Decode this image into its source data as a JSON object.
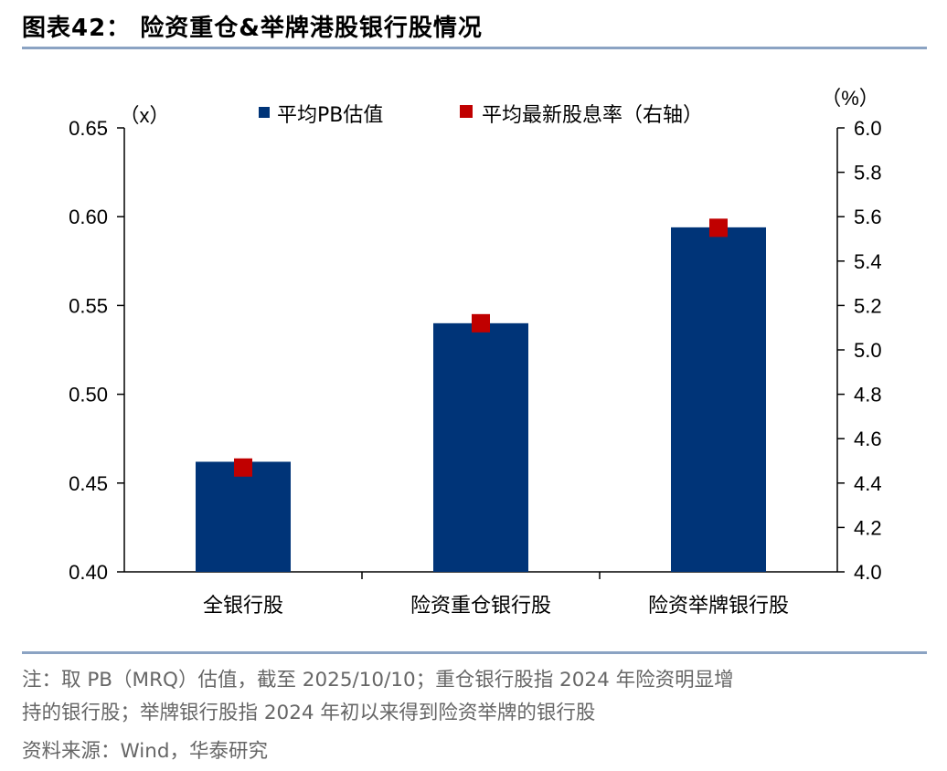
{
  "header": {
    "title": "图表42：  险资重仓&举牌港股银行股情况"
  },
  "chart_data": {
    "type": "bar",
    "categories": [
      "全银行股",
      "险资重仓银行股",
      "险资举牌银行股"
    ],
    "series": [
      {
        "name": "平均PB估值",
        "kind": "bar",
        "axis": "left",
        "color": "#003478",
        "values": [
          0.462,
          0.54,
          0.594
        ]
      },
      {
        "name": "平均最新股息率（右轴）",
        "kind": "marker",
        "axis": "right",
        "color": "#c00000",
        "values": [
          4.47,
          5.12,
          5.55
        ]
      }
    ],
    "left_axis": {
      "unit_label": "（x）",
      "min": 0.4,
      "max": 0.65,
      "ticks": [
        "0.40",
        "0.45",
        "0.50",
        "0.55",
        "0.60",
        "0.65"
      ]
    },
    "right_axis": {
      "unit_label": "（%）",
      "min": 4.0,
      "max": 6.0,
      "ticks": [
        "4.0",
        "4.2",
        "4.4",
        "4.6",
        "4.8",
        "5.0",
        "5.2",
        "5.4",
        "5.6",
        "5.8",
        "6.0"
      ]
    },
    "legend_position": "top-center",
    "grid": false
  },
  "notes": {
    "line1": "注：取 PB（MRQ）估值，截至 2025/10/10；重仓银行股指 2024 年险资明显增",
    "line2": "持的银行股；举牌银行股指 2024 年初以来得到险资举牌的银行股",
    "source": "资料来源：Wind，华泰研究"
  }
}
